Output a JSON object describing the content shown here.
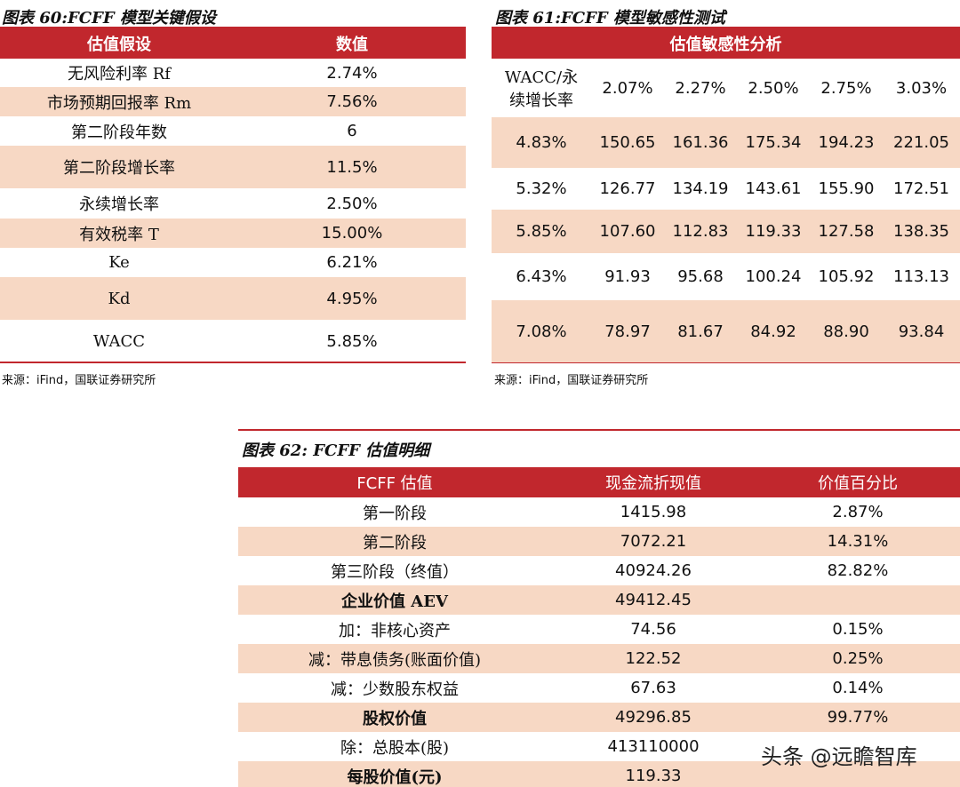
{
  "table60": {
    "title": "图表 60:FCFF 模型关键假设",
    "header": [
      "估值假设",
      "数值"
    ],
    "rows": [
      [
        "无风险利率 Rf",
        "2.74%"
      ],
      [
        "市场预期回报率 Rm",
        "7.56%"
      ],
      [
        "第二阶段年数",
        "6"
      ],
      [
        "第二阶段增长率",
        "11.5%"
      ],
      [
        "永续增长率",
        "2.50%"
      ],
      [
        "有效税率 T",
        "15.00%"
      ],
      [
        "Ke",
        "6.21%"
      ],
      [
        "Kd",
        "4.95%"
      ],
      [
        "WACC",
        "5.85%"
      ]
    ],
    "source": "来源：iFind，国联证券研究所"
  },
  "table61": {
    "title": "图表 61:FCFF 模型敏感性测试",
    "header": "估值敏感性分析",
    "corner": "WACC/永续增长率",
    "columns": [
      "2.07%",
      "2.27%",
      "2.50%",
      "2.75%",
      "3.03%"
    ],
    "rows": [
      [
        "4.83%",
        "150.65",
        "161.36",
        "175.34",
        "194.23",
        "221.05"
      ],
      [
        "5.32%",
        "126.77",
        "134.19",
        "143.61",
        "155.90",
        "172.51"
      ],
      [
        "5.85%",
        "107.60",
        "112.83",
        "119.33",
        "127.58",
        "138.35"
      ],
      [
        "6.43%",
        "91.93",
        "95.68",
        "100.24",
        "105.92",
        "113.13"
      ],
      [
        "7.08%",
        "78.97",
        "81.67",
        "84.92",
        "88.90",
        "93.84"
      ]
    ],
    "source": "来源：iFind，国联证券研究所"
  },
  "table62": {
    "title": "图表 62: FCFF 估值明细",
    "header": [
      "FCFF 估值",
      "现金流折现值",
      "价值百分比"
    ],
    "rows": [
      [
        "第一阶段",
        "1415.98",
        "2.87%"
      ],
      [
        "第二阶段",
        "7072.21",
        "14.31%"
      ],
      [
        "第三阶段（终值）",
        "40924.26",
        "82.82%"
      ],
      [
        "企业价值 AEV",
        "49412.45"
      ],
      [
        "加：非核心资产",
        "74.56",
        "0.15%"
      ],
      [
        "减：带息债务(账面价值)",
        "122.52",
        "0.25%"
      ],
      [
        "减：少数股东权益",
        "67.63",
        "0.14%"
      ],
      [
        "股权价值",
        "49296.85",
        "99.77%"
      ],
      [
        "除：总股本(股)",
        "413110000"
      ],
      [
        "每股价值(元)",
        "119.33"
      ]
    ]
  },
  "watermark": "头条 @远瞻智库"
}
